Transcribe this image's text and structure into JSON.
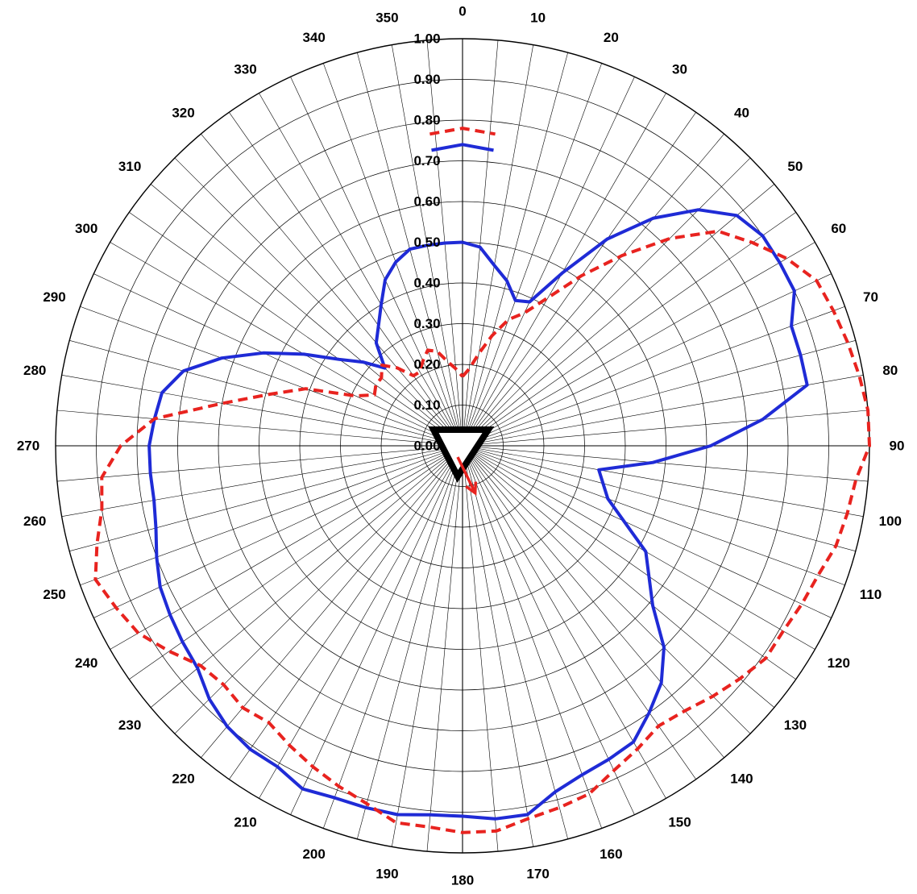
{
  "chart_data": {
    "type": "polar-line",
    "title": "",
    "angle_unit": "degrees",
    "angle_direction": "clockwise",
    "zero_at": "top",
    "angle_ticks": [
      0,
      10,
      20,
      30,
      40,
      50,
      60,
      70,
      80,
      90,
      100,
      110,
      120,
      130,
      140,
      150,
      160,
      170,
      180,
      190,
      200,
      210,
      220,
      230,
      240,
      250,
      260,
      270,
      280,
      290,
      300,
      310,
      320,
      330,
      340,
      350
    ],
    "radial_ticks": [
      "0.00",
      "0.10",
      "0.20",
      "0.30",
      "0.40",
      "0.50",
      "0.60",
      "0.70",
      "0.80",
      "0.90",
      "1.00"
    ],
    "rlim": [
      0,
      1.0
    ],
    "grid": true,
    "series": [
      {
        "color": "#1f2bd6",
        "line_style": "solid",
        "points": [
          [
            -6,
            0.73
          ],
          [
            0,
            0.74
          ],
          [
            6,
            0.73
          ],
          null,
          [
            0,
            0.5
          ],
          [
            5,
            0.49
          ],
          [
            10,
            0.45
          ],
          [
            15,
            0.42
          ],
          [
            20,
            0.38
          ],
          [
            25,
            0.39
          ],
          [
            30,
            0.49
          ],
          [
            35,
            0.62
          ],
          [
            40,
            0.73
          ],
          [
            45,
            0.82
          ],
          [
            50,
            0.88
          ],
          [
            55,
            0.9
          ],
          [
            60,
            0.9
          ],
          [
            65,
            0.9
          ],
          [
            70,
            0.86
          ],
          [
            75,
            0.86
          ],
          [
            80,
            0.86
          ],
          [
            85,
            0.74
          ],
          [
            90,
            0.61
          ],
          [
            95,
            0.47
          ],
          [
            100,
            0.34
          ],
          [
            110,
            0.38
          ],
          [
            120,
            0.52
          ],
          [
            130,
            0.61
          ],
          [
            135,
            0.7
          ],
          [
            140,
            0.76
          ],
          [
            145,
            0.8
          ],
          [
            150,
            0.84
          ],
          [
            155,
            0.85
          ],
          [
            160,
            0.86
          ],
          [
            165,
            0.88
          ],
          [
            170,
            0.92
          ],
          [
            175,
            0.92
          ],
          [
            180,
            0.91
          ],
          [
            185,
            0.91
          ],
          [
            190,
            0.92
          ],
          [
            195,
            0.92
          ],
          [
            200,
            0.92
          ],
          [
            205,
            0.93
          ],
          [
            210,
            0.91
          ],
          [
            215,
            0.91
          ],
          [
            220,
            0.9
          ],
          [
            225,
            0.88
          ],
          [
            230,
            0.85
          ],
          [
            235,
            0.84
          ],
          [
            240,
            0.83
          ],
          [
            245,
            0.82
          ],
          [
            250,
            0.8
          ],
          [
            255,
            0.78
          ],
          [
            260,
            0.77
          ],
          [
            265,
            0.77
          ],
          [
            270,
            0.77
          ],
          [
            275,
            0.76
          ],
          [
            280,
            0.75
          ],
          [
            285,
            0.71
          ],
          [
            290,
            0.63
          ],
          [
            295,
            0.54
          ],
          [
            300,
            0.45
          ],
          [
            305,
            0.37
          ],
          [
            310,
            0.32
          ],
          [
            315,
            0.27
          ],
          [
            320,
            0.33
          ],
          [
            325,
            0.36
          ],
          [
            330,
            0.4
          ],
          [
            335,
            0.45
          ],
          [
            340,
            0.48
          ],
          [
            345,
            0.5
          ],
          [
            350,
            0.5
          ],
          [
            355,
            0.5
          ],
          [
            360,
            0.5
          ]
        ]
      },
      {
        "color": "#e8231f",
        "line_style": "dashed",
        "points": [
          [
            -6,
            0.77
          ],
          [
            0,
            0.78
          ],
          [
            6,
            0.77
          ],
          null,
          [
            0,
            0.17
          ],
          [
            5,
            0.19
          ],
          [
            10,
            0.23
          ],
          [
            15,
            0.28
          ],
          [
            20,
            0.33
          ],
          [
            25,
            0.36
          ],
          [
            30,
            0.42
          ],
          [
            35,
            0.51
          ],
          [
            40,
            0.61
          ],
          [
            45,
            0.72
          ],
          [
            50,
            0.82
          ],
          [
            55,
            0.87
          ],
          [
            60,
            0.92
          ],
          [
            65,
            0.96
          ],
          [
            70,
            0.97
          ],
          [
            75,
            0.98
          ],
          [
            80,
            0.99
          ],
          [
            85,
            1.0
          ],
          [
            90,
            1.0
          ],
          [
            95,
            0.97
          ],
          [
            100,
            0.96
          ],
          [
            105,
            0.95
          ],
          [
            110,
            0.93
          ],
          [
            115,
            0.92
          ],
          [
            120,
            0.91
          ],
          [
            125,
            0.91
          ],
          [
            130,
            0.89
          ],
          [
            135,
            0.87
          ],
          [
            140,
            0.85
          ],
          [
            145,
            0.84
          ],
          [
            150,
            0.86
          ],
          [
            155,
            0.88
          ],
          [
            160,
            0.91
          ],
          [
            165,
            0.92
          ],
          [
            170,
            0.93
          ],
          [
            175,
            0.95
          ],
          [
            180,
            0.95
          ],
          [
            185,
            0.94
          ],
          [
            190,
            0.94
          ],
          [
            195,
            0.91
          ],
          [
            200,
            0.89
          ],
          [
            205,
            0.87
          ],
          [
            210,
            0.85
          ],
          [
            215,
            0.83
          ],
          [
            220,
            0.84
          ],
          [
            225,
            0.83
          ],
          [
            230,
            0.84
          ],
          [
            235,
            0.88
          ],
          [
            240,
            0.92
          ],
          [
            245,
            0.94
          ],
          [
            250,
            0.96
          ],
          [
            255,
            0.93
          ],
          [
            260,
            0.9
          ],
          [
            265,
            0.89
          ],
          [
            270,
            0.84
          ],
          [
            275,
            0.76
          ],
          [
            280,
            0.6
          ],
          [
            285,
            0.49
          ],
          [
            290,
            0.41
          ],
          [
            295,
            0.29
          ],
          [
            300,
            0.25
          ],
          [
            305,
            0.26
          ],
          [
            310,
            0.26
          ],
          [
            315,
            0.28
          ],
          [
            320,
            0.25
          ],
          [
            325,
            0.21
          ],
          [
            330,
            0.21
          ],
          [
            335,
            0.23
          ],
          [
            340,
            0.25
          ],
          [
            345,
            0.24
          ],
          [
            350,
            0.21
          ],
          [
            355,
            0.19
          ],
          [
            360,
            0.17
          ]
        ]
      }
    ],
    "markers": {
      "triangle": {
        "color": "#000000",
        "shape": "inverted-triangle"
      },
      "arrow": {
        "color": "#e8231f",
        "direction_deg": 165,
        "length": 0.12
      }
    }
  }
}
